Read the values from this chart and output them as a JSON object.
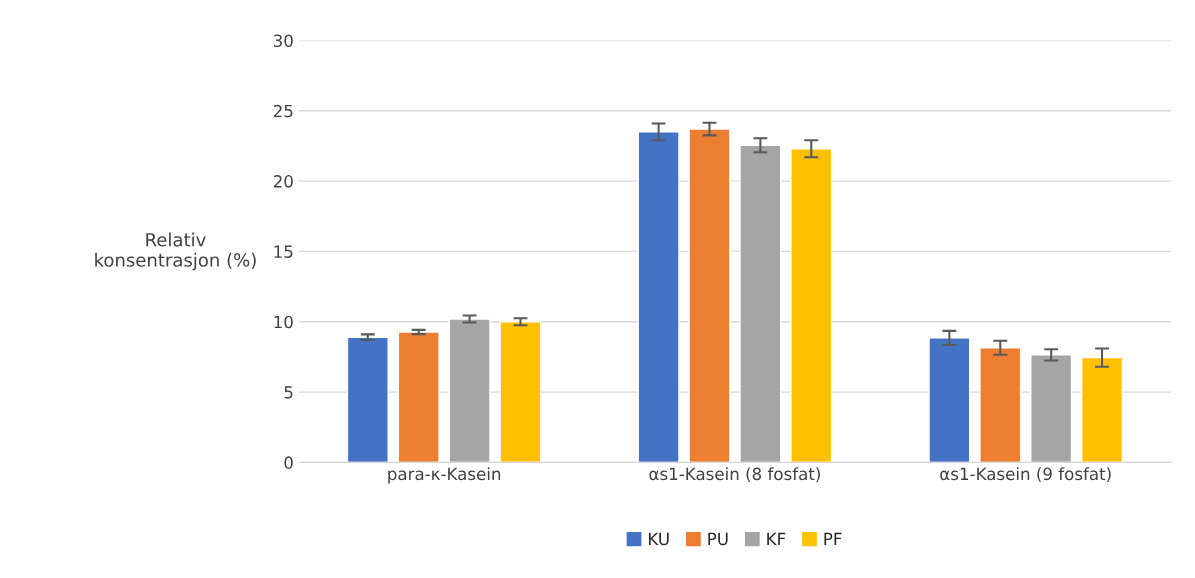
{
  "chart_data": {
    "type": "bar",
    "ylabel": "Relativ\nkonsentrasjon (%)",
    "categories": [
      "para-κ-Kasein",
      "αs1-Kasein (8 fosfat)",
      "αs1-Kasein (9 fosfat)"
    ],
    "series": [
      {
        "name": "KU",
        "color": "#4472c4",
        "values": [
          8.9,
          23.5,
          8.85
        ],
        "errors": [
          0.2,
          0.6,
          0.5
        ]
      },
      {
        "name": "PU",
        "color": "#ed7d31",
        "values": [
          9.27,
          23.7,
          8.15
        ],
        "errors": [
          0.15,
          0.45,
          0.5
        ]
      },
      {
        "name": "KF",
        "color": "#a5a5a5",
        "values": [
          10.2,
          22.55,
          7.65
        ],
        "errors": [
          0.25,
          0.5,
          0.4
        ]
      },
      {
        "name": "PF",
        "color": "#ffc000",
        "values": [
          10.0,
          22.3,
          7.45
        ],
        "errors": [
          0.25,
          0.6,
          0.65
        ]
      }
    ],
    "ylim": [
      0,
      30
    ],
    "yticks": [
      0,
      5,
      10,
      15,
      20,
      25,
      30
    ],
    "grid": "y",
    "legend": "bottom"
  }
}
